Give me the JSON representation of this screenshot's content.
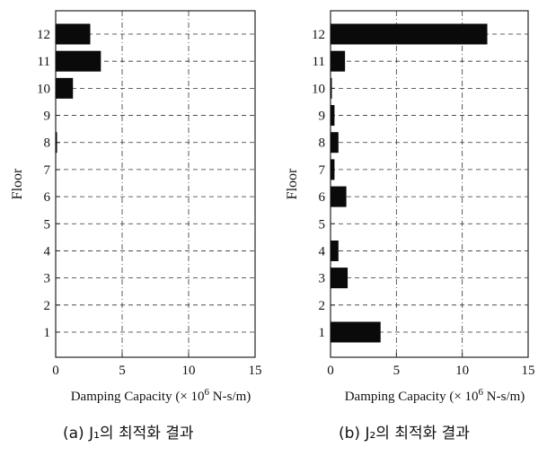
{
  "chart_data": [
    {
      "type": "bar",
      "orientation": "horizontal",
      "xlabel": "Damping Capacity (× 10⁶ N-s/m)",
      "xlabel_parts": {
        "pre": "Damping Capacity (× 10",
        "exp": "6",
        "post": " N-s/m)"
      },
      "ylabel": "Floor",
      "xlim": [
        0,
        15
      ],
      "xticks": [
        "0",
        "5",
        "10",
        "15"
      ],
      "categories": [
        "1",
        "2",
        "3",
        "4",
        "5",
        "6",
        "7",
        "8",
        "9",
        "10",
        "11",
        "12"
      ],
      "values": [
        0,
        0,
        0,
        0,
        0,
        0,
        0,
        0.1,
        0,
        1.3,
        3.4,
        2.6
      ],
      "grid": true,
      "caption": "(a) J₁의 최적화 결과"
    },
    {
      "type": "bar",
      "orientation": "horizontal",
      "xlabel": "Damping Capacity (× 10⁶ N-s/m)",
      "xlabel_parts": {
        "pre": "Damping Capacity (× 10",
        "exp": "6",
        "post": " N-s/m)"
      },
      "ylabel": "Floor",
      "xlim": [
        0,
        15
      ],
      "xticks": [
        "0",
        "5",
        "10",
        "15"
      ],
      "categories": [
        "1",
        "2",
        "3",
        "4",
        "5",
        "6",
        "7",
        "8",
        "9",
        "10",
        "11",
        "12"
      ],
      "values": [
        3.8,
        0,
        1.3,
        0.6,
        0,
        1.2,
        0.3,
        0.6,
        0.3,
        0.1,
        1.1,
        11.9
      ],
      "grid": true,
      "caption": "(b) J₂의 최적화 결과"
    }
  ]
}
